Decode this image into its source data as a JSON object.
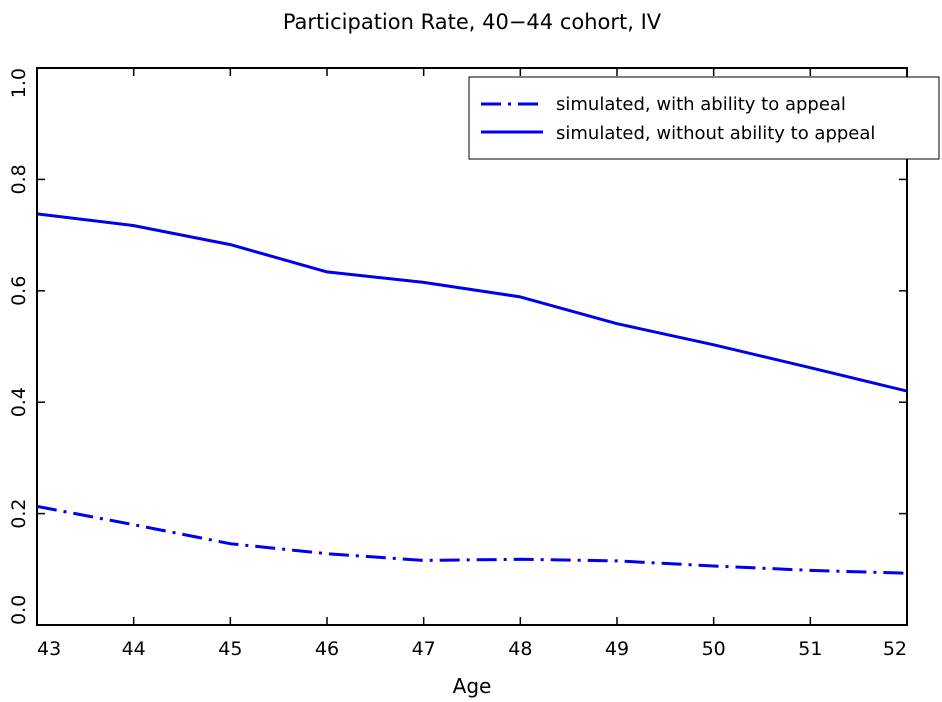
{
  "chart_data": {
    "type": "line",
    "title": "Participation Rate, 40−44 cohort, IV",
    "xlabel": "Age",
    "ylabel": "",
    "xlim": [
      43,
      52
    ],
    "ylim": [
      0.0,
      1.0
    ],
    "x_ticks": [
      "43",
      "44",
      "45",
      "46",
      "47",
      "48",
      "49",
      "50",
      "51",
      "52"
    ],
    "y_ticks": [
      "0.0",
      "0.2",
      "0.4",
      "0.6",
      "0.8",
      "1.0"
    ],
    "x": [
      43,
      44,
      45,
      46,
      47,
      48,
      49,
      50,
      51,
      52
    ],
    "series": [
      {
        "name": "simulated, with ability to appeal",
        "style": "dash-dot",
        "color": "#0000ee",
        "values": [
          0.213,
          0.18,
          0.146,
          0.128,
          0.116,
          0.118,
          0.115,
          0.106,
          0.098,
          0.093
        ]
      },
      {
        "name": "simulated, without ability to appeal",
        "style": "solid",
        "color": "#0000ee",
        "values": [
          0.738,
          0.717,
          0.683,
          0.634,
          0.615,
          0.589,
          0.541,
          0.503,
          0.462,
          0.42
        ]
      }
    ],
    "grid": false,
    "legend_position": "top-right"
  }
}
